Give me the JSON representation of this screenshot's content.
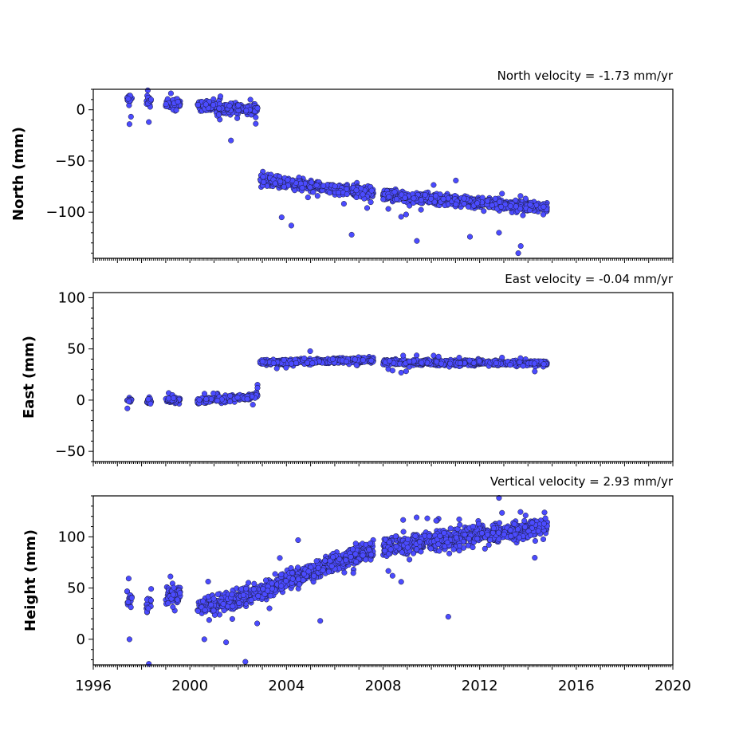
{
  "chart_data": [
    {
      "type": "scatter",
      "title": "North velocity = -1.73 mm/yr",
      "ylabel": "North (mm)",
      "ylim": [
        -145,
        20
      ],
      "yticks": [
        0,
        -50,
        -100
      ],
      "ytick_labels": [
        "0",
        "−50",
        "−100"
      ],
      "xlim": [
        1996,
        2020
      ],
      "velocity_mm_per_yr": -1.73,
      "marker_color": "#4b4bff",
      "segments": [
        {
          "x_start": 1997.4,
          "x_end": 1997.6,
          "y_start": 10,
          "y_end": 10
        },
        {
          "x_start": 1998.2,
          "x_end": 1998.4,
          "y_start": 8,
          "y_end": 8
        },
        {
          "x_start": 1999.0,
          "x_end": 1999.6,
          "y_start": 6,
          "y_end": 6
        },
        {
          "x_start": 2000.3,
          "x_end": 2002.8,
          "y_start": 4,
          "y_end": 0
        },
        {
          "x_start": 2002.9,
          "x_end": 2007.6,
          "y_start": -68,
          "y_end": -82
        },
        {
          "x_start": 2008.0,
          "x_end": 2014.8,
          "y_start": -83,
          "y_end": -96
        }
      ],
      "outliers": [
        [
          1997.5,
          -14
        ],
        [
          1998.3,
          -12
        ],
        [
          2001.7,
          -30
        ],
        [
          2003.8,
          -105
        ],
        [
          2004.2,
          -113
        ],
        [
          2006.7,
          -122
        ],
        [
          2009.4,
          -128
        ],
        [
          2011.6,
          -124
        ],
        [
          2012.8,
          -120
        ],
        [
          2013.6,
          -140
        ],
        [
          2013.7,
          -133
        ]
      ]
    },
    {
      "type": "scatter",
      "title": "East velocity = -0.04 mm/yr",
      "ylabel": "East (mm)",
      "ylim": [
        -60,
        105
      ],
      "yticks": [
        100,
        50,
        0,
        -50
      ],
      "ytick_labels": [
        "100",
        "50",
        "0",
        "−50"
      ],
      "xlim": [
        1996,
        2020
      ],
      "velocity_mm_per_yr": -0.04,
      "marker_color": "#4b4bff",
      "segments": [
        {
          "x_start": 1997.4,
          "x_end": 1997.6,
          "y_start": 0,
          "y_end": 0
        },
        {
          "x_start": 1998.2,
          "x_end": 1998.4,
          "y_start": -1,
          "y_end": -1
        },
        {
          "x_start": 1999.0,
          "x_end": 1999.6,
          "y_start": 0,
          "y_end": 0
        },
        {
          "x_start": 2000.3,
          "x_end": 2002.8,
          "y_start": -1,
          "y_end": 4
        },
        {
          "x_start": 2002.9,
          "x_end": 2007.6,
          "y_start": 37,
          "y_end": 39
        },
        {
          "x_start": 2008.0,
          "x_end": 2014.8,
          "y_start": 37,
          "y_end": 36
        }
      ],
      "outliers": [
        [
          2002.8,
          15
        ],
        [
          2002.8,
          12
        ],
        [
          2003.6,
          31
        ]
      ]
    },
    {
      "type": "scatter",
      "title": "Vertical velocity = 2.93 mm/yr",
      "ylabel": "Height (mm)",
      "ylim": [
        -25,
        140
      ],
      "yticks": [
        100,
        50,
        0
      ],
      "ytick_labels": [
        "100",
        "50",
        "0"
      ],
      "xlim": [
        1996,
        2020
      ],
      "xticks": [
        1996,
        2000,
        2004,
        2008,
        2012,
        2016,
        2020
      ],
      "xtick_labels": [
        "1996",
        "2000",
        "2004",
        "2008",
        "2012",
        "2016",
        "2020"
      ],
      "velocity_mm_per_yr": 2.93,
      "marker_color": "#4b4bff",
      "segments": [
        {
          "x_start": 1997.4,
          "x_end": 1997.6,
          "y_start": 40,
          "y_end": 40
        },
        {
          "x_start": 1998.2,
          "x_end": 1998.4,
          "y_start": 35,
          "y_end": 35
        },
        {
          "x_start": 1999.0,
          "x_end": 1999.6,
          "y_start": 42,
          "y_end": 42
        },
        {
          "x_start": 2000.3,
          "x_end": 2002.0,
          "y_start": 32,
          "y_end": 38
        },
        {
          "x_start": 2002.0,
          "x_end": 2007.6,
          "y_start": 40,
          "y_end": 88
        },
        {
          "x_start": 2008.0,
          "x_end": 2014.8,
          "y_start": 90,
          "y_end": 110
        }
      ],
      "outliers": [
        [
          1997.5,
          0
        ],
        [
          1998.3,
          -24
        ],
        [
          2000.6,
          0
        ],
        [
          2001.5,
          -3
        ],
        [
          2002.3,
          -22
        ],
        [
          2005.4,
          18
        ],
        [
          2010.7,
          22
        ],
        [
          2012.8,
          138
        ]
      ]
    }
  ]
}
